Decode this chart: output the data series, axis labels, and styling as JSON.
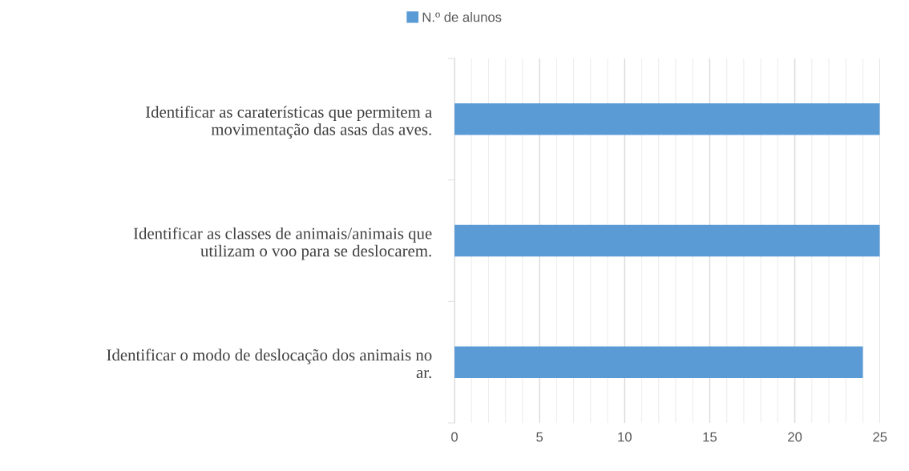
{
  "chart_data": {
    "type": "bar",
    "orientation": "horizontal",
    "categories": [
      "Identificar as caraterísticas que permitem a\nmovimentação das asas das aves.",
      "Identificar as classes de animais/animais que\nutilizam o voo para se deslocarem.",
      "Identificar o modo de deslocação dos animais no\nar."
    ],
    "series": [
      {
        "name": "N.º de alunos",
        "color": "#5b9bd5",
        "values": [
          25,
          25,
          24
        ]
      }
    ],
    "xlim": [
      0,
      25
    ],
    "xticks": [
      0,
      5,
      10,
      15,
      20,
      25
    ],
    "grid": "x",
    "legend": "top"
  }
}
